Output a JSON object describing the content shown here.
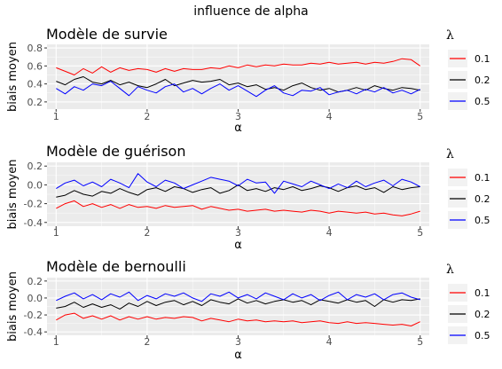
{
  "figure": {
    "title": "influence de alpha"
  },
  "chart_data": [
    {
      "type": "line",
      "title": "Modèle de survie",
      "xlabel": "α",
      "ylabel": "biais moyen",
      "xlim": [
        0.9,
        5.1
      ],
      "ylim": [
        0.12,
        0.84
      ],
      "xticks": [
        1,
        2,
        3,
        4,
        5
      ],
      "xtick_labels": [
        "1",
        "2",
        "3",
        "4",
        "5"
      ],
      "yticks": [
        0.2,
        0.4,
        0.6,
        0.8
      ],
      "ytick_labels": [
        "0.2",
        "0.4",
        "0.6",
        "0.8"
      ],
      "grid": true,
      "legend": {
        "title": "λ",
        "position": "right",
        "labels": [
          "0.1",
          "0.2",
          "0.5"
        ]
      },
      "x": [
        1.0,
        1.1,
        1.2,
        1.3,
        1.4,
        1.5,
        1.6,
        1.7,
        1.8,
        1.9,
        2.0,
        2.1,
        2.2,
        2.3,
        2.4,
        2.5,
        2.6,
        2.7,
        2.8,
        2.9,
        3.0,
        3.1,
        3.2,
        3.3,
        3.4,
        3.5,
        3.6,
        3.7,
        3.8,
        3.9,
        4.0,
        4.1,
        4.2,
        4.3,
        4.4,
        4.5,
        4.6,
        4.7,
        4.8,
        4.9,
        5.0
      ],
      "series": [
        {
          "name": "0.1",
          "color": "#ff0000",
          "values": [
            0.58,
            0.54,
            0.5,
            0.57,
            0.52,
            0.59,
            0.53,
            0.58,
            0.55,
            0.57,
            0.56,
            0.53,
            0.57,
            0.54,
            0.57,
            0.56,
            0.56,
            0.58,
            0.57,
            0.6,
            0.58,
            0.61,
            0.59,
            0.61,
            0.6,
            0.62,
            0.61,
            0.61,
            0.63,
            0.62,
            0.64,
            0.62,
            0.63,
            0.64,
            0.62,
            0.64,
            0.63,
            0.65,
            0.68,
            0.67,
            0.6
          ]
        },
        {
          "name": "0.2",
          "color": "#000000",
          "values": [
            0.43,
            0.39,
            0.45,
            0.48,
            0.42,
            0.4,
            0.44,
            0.39,
            0.42,
            0.38,
            0.36,
            0.4,
            0.45,
            0.38,
            0.41,
            0.44,
            0.42,
            0.43,
            0.45,
            0.39,
            0.41,
            0.37,
            0.39,
            0.34,
            0.36,
            0.33,
            0.38,
            0.41,
            0.36,
            0.33,
            0.35,
            0.31,
            0.33,
            0.36,
            0.33,
            0.38,
            0.35,
            0.33,
            0.36,
            0.35,
            0.33
          ]
        },
        {
          "name": "0.5",
          "color": "#0000ff",
          "values": [
            0.35,
            0.29,
            0.37,
            0.33,
            0.4,
            0.38,
            0.43,
            0.35,
            0.27,
            0.37,
            0.33,
            0.3,
            0.37,
            0.4,
            0.31,
            0.35,
            0.29,
            0.35,
            0.4,
            0.33,
            0.38,
            0.32,
            0.26,
            0.33,
            0.38,
            0.3,
            0.27,
            0.33,
            0.32,
            0.36,
            0.28,
            0.31,
            0.33,
            0.29,
            0.34,
            0.31,
            0.36,
            0.3,
            0.33,
            0.29,
            0.34
          ]
        }
      ]
    },
    {
      "type": "line",
      "title": "Modèle de guérison",
      "xlabel": "α",
      "ylabel": "biais moyen",
      "xlim": [
        0.9,
        5.1
      ],
      "ylim": [
        -0.44,
        0.24
      ],
      "xticks": [
        1,
        2,
        3,
        4,
        5
      ],
      "xtick_labels": [
        "1",
        "2",
        "3",
        "4",
        "5"
      ],
      "yticks": [
        -0.4,
        -0.2,
        0.0,
        0.2
      ],
      "ytick_labels": [
        "-0.4",
        "-0.2",
        "0.0",
        "0.2"
      ],
      "grid": true,
      "legend": {
        "title": "λ",
        "position": "right",
        "labels": [
          "0.1",
          "0.2",
          "0.5"
        ]
      },
      "x": [
        1.0,
        1.1,
        1.2,
        1.3,
        1.4,
        1.5,
        1.6,
        1.7,
        1.8,
        1.9,
        2.0,
        2.1,
        2.2,
        2.3,
        2.4,
        2.5,
        2.6,
        2.7,
        2.8,
        2.9,
        3.0,
        3.1,
        3.2,
        3.3,
        3.4,
        3.5,
        3.6,
        3.7,
        3.8,
        3.9,
        4.0,
        4.1,
        4.2,
        4.3,
        4.4,
        4.5,
        4.6,
        4.7,
        4.8,
        4.9,
        5.0
      ],
      "series": [
        {
          "name": "0.1",
          "color": "#ff0000",
          "values": [
            -0.25,
            -0.2,
            -0.17,
            -0.23,
            -0.2,
            -0.24,
            -0.21,
            -0.25,
            -0.21,
            -0.24,
            -0.23,
            -0.25,
            -0.22,
            -0.24,
            -0.23,
            -0.22,
            -0.26,
            -0.23,
            -0.25,
            -0.27,
            -0.26,
            -0.28,
            -0.27,
            -0.26,
            -0.28,
            -0.27,
            -0.28,
            -0.29,
            -0.27,
            -0.28,
            -0.3,
            -0.28,
            -0.29,
            -0.3,
            -0.29,
            -0.31,
            -0.3,
            -0.32,
            -0.33,
            -0.31,
            -0.28
          ]
        },
        {
          "name": "0.2",
          "color": "#000000",
          "values": [
            -0.13,
            -0.11,
            -0.06,
            -0.1,
            -0.12,
            -0.07,
            -0.09,
            -0.04,
            -0.08,
            -0.11,
            -0.05,
            -0.03,
            -0.07,
            -0.02,
            -0.04,
            -0.08,
            -0.05,
            -0.03,
            -0.09,
            -0.06,
            0.0,
            -0.06,
            -0.04,
            -0.07,
            -0.03,
            -0.05,
            -0.02,
            -0.06,
            -0.04,
            -0.01,
            -0.03,
            -0.07,
            -0.03,
            -0.01,
            -0.05,
            -0.03,
            -0.08,
            -0.02,
            -0.05,
            -0.03,
            -0.02
          ]
        },
        {
          "name": "0.5",
          "color": "#0000ff",
          "values": [
            -0.04,
            0.02,
            0.05,
            -0.01,
            0.03,
            -0.02,
            0.06,
            0.02,
            -0.03,
            0.12,
            0.03,
            -0.02,
            0.05,
            0.02,
            -0.04,
            0.0,
            0.04,
            0.08,
            0.06,
            0.04,
            -0.01,
            0.06,
            0.02,
            0.03,
            -0.09,
            0.04,
            0.01,
            -0.02,
            0.04,
            0.0,
            -0.04,
            0.01,
            -0.03,
            0.04,
            -0.02,
            0.02,
            0.05,
            -0.01,
            0.06,
            0.03,
            -0.02
          ]
        }
      ]
    },
    {
      "type": "line",
      "title": "Modèle de bernoulli",
      "xlabel": "α",
      "ylabel": "biais moyen",
      "xlim": [
        0.9,
        5.1
      ],
      "ylim": [
        -0.44,
        0.24
      ],
      "xticks": [
        1,
        2,
        3,
        4,
        5
      ],
      "xtick_labels": [
        "1",
        "2",
        "3",
        "4",
        "5"
      ],
      "yticks": [
        -0.4,
        -0.2,
        0.0,
        0.2
      ],
      "ytick_labels": [
        "-0.4",
        "-0.2",
        "0.0",
        "0.2"
      ],
      "grid": true,
      "legend": {
        "title": "λ",
        "position": "right",
        "labels": [
          "0.1",
          "0.2",
          "0.5"
        ]
      },
      "x": [
        1.0,
        1.1,
        1.2,
        1.3,
        1.4,
        1.5,
        1.6,
        1.7,
        1.8,
        1.9,
        2.0,
        2.1,
        2.2,
        2.3,
        2.4,
        2.5,
        2.6,
        2.7,
        2.8,
        2.9,
        3.0,
        3.1,
        3.2,
        3.3,
        3.4,
        3.5,
        3.6,
        3.7,
        3.8,
        3.9,
        4.0,
        4.1,
        4.2,
        4.3,
        4.4,
        4.5,
        4.6,
        4.7,
        4.8,
        4.9,
        5.0
      ],
      "series": [
        {
          "name": "0.1",
          "color": "#ff0000",
          "values": [
            -0.26,
            -0.2,
            -0.18,
            -0.24,
            -0.21,
            -0.25,
            -0.21,
            -0.26,
            -0.22,
            -0.25,
            -0.22,
            -0.25,
            -0.23,
            -0.24,
            -0.22,
            -0.23,
            -0.27,
            -0.24,
            -0.26,
            -0.28,
            -0.25,
            -0.27,
            -0.26,
            -0.28,
            -0.27,
            -0.28,
            -0.27,
            -0.29,
            -0.28,
            -0.27,
            -0.29,
            -0.3,
            -0.28,
            -0.3,
            -0.29,
            -0.3,
            -0.31,
            -0.32,
            -0.31,
            -0.33,
            -0.28
          ]
        },
        {
          "name": "0.2",
          "color": "#000000",
          "values": [
            -0.12,
            -0.1,
            -0.05,
            -0.11,
            -0.07,
            -0.11,
            -0.08,
            -0.13,
            -0.06,
            -0.1,
            -0.04,
            -0.09,
            -0.05,
            -0.03,
            -0.08,
            -0.04,
            -0.09,
            -0.02,
            -0.05,
            -0.07,
            -0.01,
            -0.06,
            -0.03,
            -0.07,
            -0.04,
            -0.02,
            -0.05,
            -0.03,
            -0.08,
            -0.02,
            -0.04,
            -0.06,
            -0.02,
            -0.05,
            -0.03,
            -0.1,
            -0.02,
            -0.05,
            -0.02,
            -0.03,
            -0.01
          ]
        },
        {
          "name": "0.5",
          "color": "#0000ff",
          "values": [
            -0.03,
            0.02,
            0.06,
            -0.01,
            0.04,
            -0.02,
            0.05,
            0.01,
            0.07,
            -0.03,
            0.03,
            -0.01,
            0.05,
            0.02,
            0.06,
            0.0,
            -0.04,
            0.05,
            0.02,
            0.07,
            0.0,
            0.04,
            -0.01,
            0.06,
            0.02,
            -0.02,
            0.05,
            0.0,
            0.04,
            -0.03,
            0.03,
            0.07,
            -0.02,
            0.04,
            0.01,
            0.05,
            -0.02,
            0.04,
            0.06,
            0.01,
            -0.02
          ]
        }
      ]
    }
  ]
}
